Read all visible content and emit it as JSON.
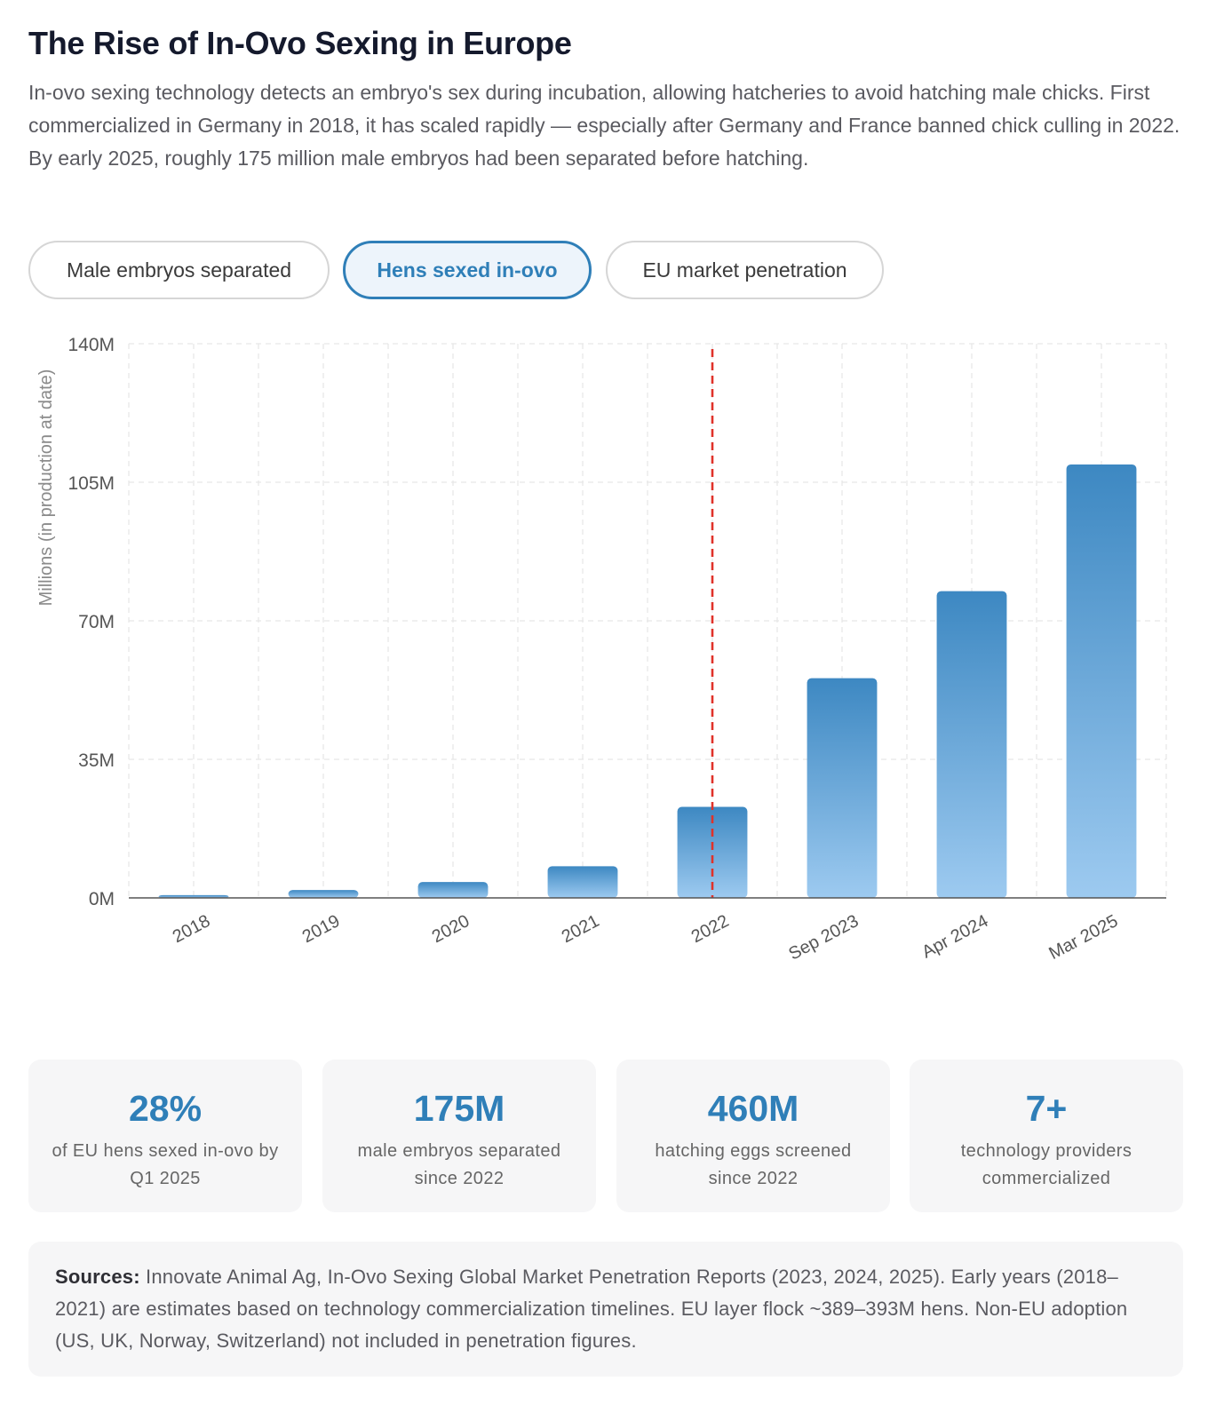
{
  "title": "The Rise of In-Ovo Sexing in Europe",
  "intro": "In-ovo sexing technology detects an embryo's sex during incubation, allowing hatcheries to avoid hatching male chicks. First commercialized in Germany in 2018, it has scaled rapidly — especially after Germany and France banned chick culling in 2022. By early 2025, roughly 175 million male embryos had been separated before hatching.",
  "tabs": [
    {
      "label": "Male embryos separated",
      "active": false
    },
    {
      "label": "Hens sexed in-ovo",
      "active": true
    },
    {
      "label": "EU market penetration",
      "active": false
    }
  ],
  "colors": {
    "accent": "#2f7fb8",
    "bar_top": "#3d88c2",
    "bar_bottom": "#9dcaf0",
    "marker": "#e0322a",
    "grid": "#e6e6e6",
    "axis": "#555555"
  },
  "chart_data": {
    "type": "bar",
    "title": "",
    "xlabel": "",
    "ylabel": "Millions (in production at date)",
    "categories": [
      "2018",
      "2019",
      "2020",
      "2021",
      "2022",
      "Sep 2023",
      "Apr 2024",
      "Mar 2025"
    ],
    "values": [
      0.7,
      2.0,
      4.0,
      8.0,
      23.0,
      55.5,
      77.5,
      109.5
    ],
    "ylim": [
      0,
      140
    ],
    "yticks": [
      0,
      35,
      70,
      105,
      140
    ],
    "ytick_labels": [
      "0M",
      "35M",
      "70M",
      "105M",
      "140M"
    ],
    "grid": true,
    "marker_category": "2022"
  },
  "stats": [
    {
      "value": "28%",
      "label": "of EU hens sexed in-ovo by Q1 2025"
    },
    {
      "value": "175M",
      "label": "male embryos separated since 2022"
    },
    {
      "value": "460M",
      "label": "hatching eggs screened since 2022"
    },
    {
      "value": "7+",
      "label": "technology providers commercialized"
    }
  ],
  "sources": {
    "label": "Sources:",
    "text": " Innovate Animal Ag, In-Ovo Sexing Global Market Penetration Reports (2023, 2024, 2025). Early years (2018–2021) are estimates based on technology commercialization timelines. EU layer flock ~389–393M hens. Non-EU adoption (US, UK, Norway, Switzerland) not included in penetration figures."
  }
}
